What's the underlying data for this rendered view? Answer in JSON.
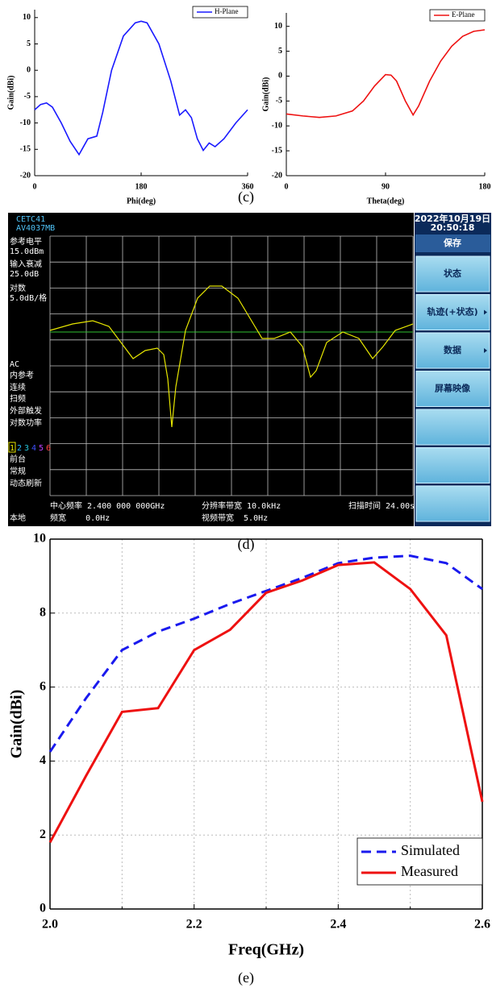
{
  "captions": [
    "(c)",
    "(d)",
    "(e)"
  ],
  "chart_data": [
    {
      "type": "line",
      "x_label": "Phi(deg)",
      "y_label": "Gain(dBi)",
      "x": [
        0,
        10,
        20,
        30,
        45,
        60,
        75,
        80,
        90,
        105,
        115,
        130,
        150,
        170,
        180,
        190,
        210,
        230,
        245,
        255,
        265,
        275,
        285,
        295,
        305,
        320,
        340,
        360
      ],
      "series": [
        {
          "name": "H-Plane",
          "color": "#1a1aff",
          "values": [
            -7.5,
            -6.5,
            -6.2,
            -7,
            -10,
            -13.5,
            -16,
            -15,
            -13,
            -12.5,
            -8,
            0,
            6.5,
            9,
            9.3,
            9,
            5,
            -2,
            -8.5,
            -7.5,
            -9,
            -13,
            -15.2,
            -13.8,
            -14.5,
            -13,
            -10,
            -7.5
          ]
        }
      ],
      "xlim": [
        0,
        360
      ],
      "xticks": [
        0,
        180,
        360
      ],
      "ylim": [
        -20,
        11.5
      ],
      "yticks": [
        -20,
        -15,
        -10,
        -5,
        0,
        5,
        10
      ],
      "grid": false,
      "legend": "upper right"
    },
    {
      "type": "line",
      "x_label": "Theta(deg)",
      "y_label": "Gain(dBi)",
      "x": [
        0,
        15,
        30,
        45,
        60,
        70,
        80,
        90,
        95,
        100,
        108,
        115,
        120,
        130,
        140,
        150,
        160,
        170,
        180
      ],
      "series": [
        {
          "name": "E-Plane",
          "color": "#ee1111",
          "values": [
            -7.6,
            -8,
            -8.3,
            -8,
            -7,
            -5,
            -2,
            0.3,
            0.2,
            -1,
            -5,
            -7.8,
            -6,
            -1,
            3,
            6,
            8,
            9,
            9.3
          ]
        }
      ],
      "xlim": [
        0,
        180
      ],
      "xticks": [
        0,
        90,
        180
      ],
      "ylim": [
        -20,
        12.7
      ],
      "yticks": [
        -20,
        -15,
        -10,
        -5,
        0,
        5,
        10
      ],
      "grid": false,
      "legend": "upper right"
    },
    {
      "type": "line",
      "x_label": "Freq(GHz)",
      "y_label": "Gain(dBi)",
      "x": [
        2.0,
        2.05,
        2.1,
        2.15,
        2.2,
        2.25,
        2.3,
        2.35,
        2.4,
        2.45,
        2.5,
        2.55,
        2.6
      ],
      "series": [
        {
          "name": "Simulated",
          "color": "#1a1aee",
          "line_style": "dashed",
          "values": [
            4.25,
            5.7,
            7.0,
            7.5,
            7.85,
            8.25,
            8.6,
            8.95,
            9.35,
            9.5,
            9.55,
            9.35,
            8.65
          ]
        },
        {
          "name": "Measured",
          "color": "#ee1111",
          "line_style": "solid",
          "values": [
            1.8,
            3.6,
            5.33,
            5.43,
            7.0,
            7.55,
            8.55,
            8.88,
            9.3,
            9.37,
            8.65,
            7.4,
            2.9
          ]
        }
      ],
      "xlim": [
        2.0,
        2.6
      ],
      "xticks": [
        {
          "value": 2.0,
          "label": "2.0"
        },
        2.2,
        2.4,
        2.6
      ],
      "minor_xticks": [
        2.1,
        2.3,
        2.5
      ],
      "ylim": [
        0,
        10
      ],
      "yticks": [
        0,
        2,
        4,
        6,
        8,
        10
      ],
      "grid": true,
      "legend": "lower right"
    }
  ],
  "screen": {
    "model": [
      "CETC41",
      "AV4037MB"
    ],
    "left_labels": [
      "参考电平",
      "15.0dBm",
      "输入衰减",
      "25.0dB",
      "对数",
      "5.0dB/格",
      "AC",
      "内参考",
      "连续",
      "扫频",
      "外部触发",
      "对数功率"
    ],
    "trace_numbers": [
      "1",
      "2",
      "3",
      "4",
      "5",
      "6"
    ],
    "mode_labels": [
      "前台",
      "常规",
      "动态刷新"
    ],
    "local": "本地",
    "bottom": [
      "中心频率 2.400 000 000GHz",
      "频宽    0.0Hz",
      "分辨率带宽 10.0kHz",
      "视频带宽  5.0Hz",
      "扫描时间 24.00s"
    ],
    "date": "2022年10月19日",
    "time": "20:50:18",
    "menu_title": "保存",
    "buttons": [
      "状态",
      "轨迹(+状态)",
      "数据",
      "屏幕映像"
    ]
  }
}
